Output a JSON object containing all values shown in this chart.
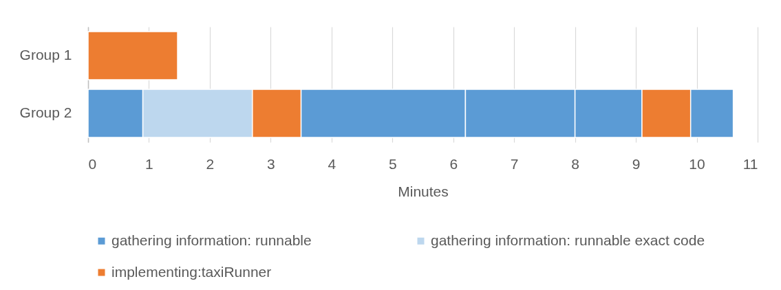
{
  "chart_data": {
    "type": "bar",
    "orientation": "horizontal",
    "stacked": true,
    "categories": [
      "Group 1",
      "Group 2"
    ],
    "xlabel": "Minutes",
    "xlim": [
      0,
      11
    ],
    "xticks": [
      0,
      1,
      2,
      3,
      4,
      5,
      6,
      7,
      8,
      9,
      10,
      11
    ],
    "grid": "x",
    "legend": "bottom",
    "series": [
      {
        "name": "gathering information: runnable",
        "color": "#5b9bd5",
        "values": [
          null,
          0.9
        ]
      },
      {
        "name": "gathering information: runnable exact code",
        "color": "#bdd7ee",
        "values": [
          null,
          1.8
        ]
      },
      {
        "name": "implementing:taxiRunner",
        "color": "#ed7d31",
        "values": [
          1.47,
          0.8
        ]
      },
      {
        "color": "#5b9bd5",
        "values": [
          null,
          2.7
        ]
      },
      {
        "color": "#5b9bd5",
        "values": [
          null,
          1.8
        ]
      },
      {
        "color": "#5b9bd5",
        "values": [
          null,
          1.1
        ]
      },
      {
        "color": "#ed7d31",
        "values": [
          null,
          0.8
        ]
      },
      {
        "color": "#5b9bd5",
        "values": [
          null,
          0.7
        ]
      }
    ]
  }
}
